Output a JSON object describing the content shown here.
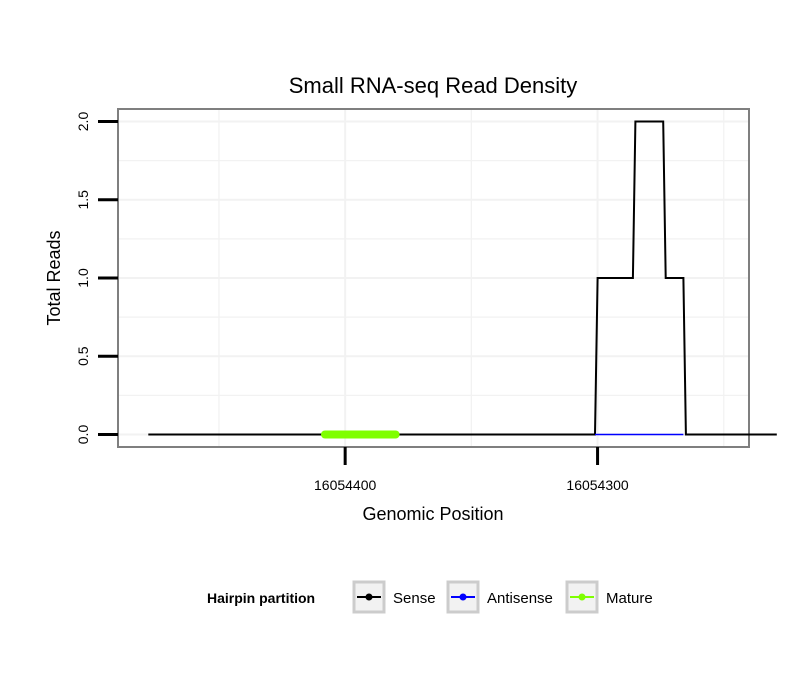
{
  "chart_data": {
    "type": "line",
    "title": "Small RNA-seq Read Density",
    "xlabel": "Genomic Position",
    "ylabel": "Total Reads",
    "xlim": [
      16054490,
      16054240
    ],
    "ylim": [
      -0.08,
      2.08
    ],
    "x_ticks": [
      {
        "value": 16054400,
        "label": "16054400"
      },
      {
        "value": 16054300,
        "label": "16054300"
      }
    ],
    "y_ticks": [
      {
        "value": 0,
        "label": "0.0"
      },
      {
        "value": 0.5,
        "label": "0.5"
      },
      {
        "value": 1,
        "label": "1.0"
      },
      {
        "value": 1.5,
        "label": "1.5"
      },
      {
        "value": 2,
        "label": "2.0"
      }
    ],
    "x_grid": [
      16054450,
      16054400,
      16054350,
      16054300,
      16054250
    ],
    "y_grid": [
      0,
      0.25,
      0.5,
      0.75,
      1,
      1.25,
      1.5,
      1.75,
      2
    ],
    "series": [
      {
        "name": "Sense",
        "color": "#000000",
        "x": [
          16054478,
          16054301,
          16054300,
          16054286,
          16054285,
          16054274,
          16054273,
          16054266,
          16054265,
          16054229
        ],
        "values": [
          0,
          0,
          1,
          1,
          2,
          2,
          1,
          1,
          0,
          0
        ]
      },
      {
        "name": "Antisense",
        "color": "#0000ff",
        "x": [
          16054301,
          16054266
        ],
        "values": [
          0,
          0
        ]
      },
      {
        "name": "Mature",
        "color": "#7fff00",
        "x": [
          16054408,
          16054380
        ],
        "values": [
          0,
          0
        ]
      }
    ],
    "legend": {
      "title": "Hairpin partition",
      "placement": "bottom",
      "entries": [
        {
          "label": "Sense",
          "color": "#000000"
        },
        {
          "label": "Antisense",
          "color": "#0000ff"
        },
        {
          "label": "Mature",
          "color": "#7fff00"
        }
      ]
    }
  }
}
